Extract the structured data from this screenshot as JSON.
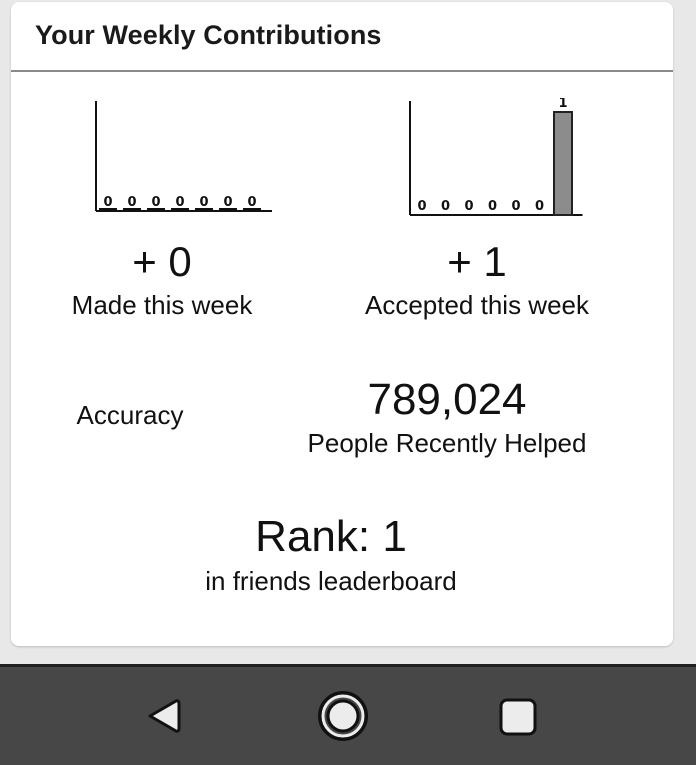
{
  "card": {
    "title": "Your Weekly Contributions"
  },
  "made": {
    "value": "+ 0",
    "label": "Made this week",
    "daily_counts": [
      0,
      0,
      0,
      0,
      0,
      0,
      0
    ]
  },
  "accepted": {
    "value": "+ 1",
    "label": "Accepted this week",
    "daily_counts": [
      0,
      0,
      0,
      0,
      0,
      0,
      1
    ]
  },
  "accuracy": {
    "label": "Accuracy"
  },
  "helped": {
    "value": "789,024",
    "label": "People Recently Helped"
  },
  "rank": {
    "value": "Rank: 1",
    "label": "in friends leaderboard"
  },
  "navbar": {
    "buttons": [
      {
        "icon": "back-icon"
      },
      {
        "icon": "home-icon"
      },
      {
        "icon": "recents-icon"
      }
    ]
  },
  "colors": {
    "bar_fill": "#8c8c8c",
    "bar_stroke": "#222222",
    "navbar": "#474747",
    "card": "#ffffff",
    "background": "#e8e8e8"
  }
}
